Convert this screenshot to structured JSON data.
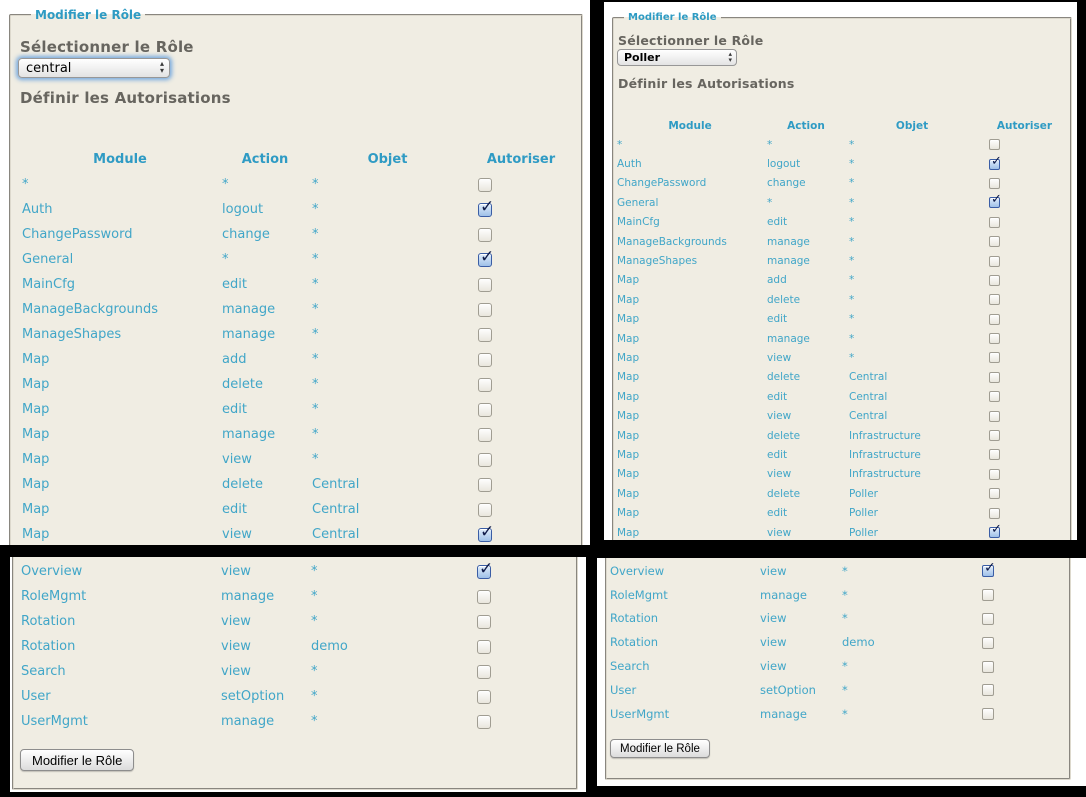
{
  "theme": {
    "accent_blue": "#41a6c8",
    "header_blue": "#2f9bc4",
    "legend_blue": "#2e9bc3",
    "heading_gray": "#67655f",
    "panel_beige": "#f0ede3",
    "frame_black": "#000000"
  },
  "icons": {
    "select_stepper_up": "▴",
    "select_stepper_down": "▾",
    "checkmark": "✓"
  },
  "panels": {
    "top_left": {
      "legend": "Modifier le Rôle",
      "select_role_heading": "Sélectionner le Rôle",
      "selected_role": "central",
      "permissions_heading": "Définir les Autorisations",
      "columns": [
        "Module",
        "Action",
        "Objet",
        "Autoriser"
      ],
      "rows": [
        {
          "module": "*",
          "action": "*",
          "objet": "*",
          "checked": false
        },
        {
          "module": "Auth",
          "action": "logout",
          "objet": "*",
          "checked": true
        },
        {
          "module": "ChangePassword",
          "action": "change",
          "objet": "*",
          "checked": false
        },
        {
          "module": "General",
          "action": "*",
          "objet": "*",
          "checked": true
        },
        {
          "module": "MainCfg",
          "action": "edit",
          "objet": "*",
          "checked": false
        },
        {
          "module": "ManageBackgrounds",
          "action": "manage",
          "objet": "*",
          "checked": false
        },
        {
          "module": "ManageShapes",
          "action": "manage",
          "objet": "*",
          "checked": false
        },
        {
          "module": "Map",
          "action": "add",
          "objet": "*",
          "checked": false
        },
        {
          "module": "Map",
          "action": "delete",
          "objet": "*",
          "checked": false
        },
        {
          "module": "Map",
          "action": "edit",
          "objet": "*",
          "checked": false
        },
        {
          "module": "Map",
          "action": "manage",
          "objet": "*",
          "checked": false
        },
        {
          "module": "Map",
          "action": "view",
          "objet": "*",
          "checked": false
        },
        {
          "module": "Map",
          "action": "delete",
          "objet": "Central",
          "checked": false
        },
        {
          "module": "Map",
          "action": "edit",
          "objet": "Central",
          "checked": false
        },
        {
          "module": "Map",
          "action": "view",
          "objet": "Central",
          "checked": true
        }
      ]
    },
    "top_right": {
      "legend": "Modifier le Rôle",
      "select_role_heading": "Sélectionner le Rôle",
      "selected_role": "Poller",
      "permissions_heading": "Définir les Autorisations",
      "columns": [
        "Module",
        "Action",
        "Objet",
        "Autoriser"
      ],
      "rows": [
        {
          "module": "*",
          "action": "*",
          "objet": "*",
          "checked": false
        },
        {
          "module": "Auth",
          "action": "logout",
          "objet": "*",
          "checked": true
        },
        {
          "module": "ChangePassword",
          "action": "change",
          "objet": "*",
          "checked": false
        },
        {
          "module": "General",
          "action": "*",
          "objet": "*",
          "checked": true
        },
        {
          "module": "MainCfg",
          "action": "edit",
          "objet": "*",
          "checked": false
        },
        {
          "module": "ManageBackgrounds",
          "action": "manage",
          "objet": "*",
          "checked": false
        },
        {
          "module": "ManageShapes",
          "action": "manage",
          "objet": "*",
          "checked": false
        },
        {
          "module": "Map",
          "action": "add",
          "objet": "*",
          "checked": false
        },
        {
          "module": "Map",
          "action": "delete",
          "objet": "*",
          "checked": false
        },
        {
          "module": "Map",
          "action": "edit",
          "objet": "*",
          "checked": false
        },
        {
          "module": "Map",
          "action": "manage",
          "objet": "*",
          "checked": false
        },
        {
          "module": "Map",
          "action": "view",
          "objet": "*",
          "checked": false
        },
        {
          "module": "Map",
          "action": "delete",
          "objet": "Central",
          "checked": false
        },
        {
          "module": "Map",
          "action": "edit",
          "objet": "Central",
          "checked": false
        },
        {
          "module": "Map",
          "action": "view",
          "objet": "Central",
          "checked": false
        },
        {
          "module": "Map",
          "action": "delete",
          "objet": "Infrastructure",
          "checked": false
        },
        {
          "module": "Map",
          "action": "edit",
          "objet": "Infrastructure",
          "checked": false
        },
        {
          "module": "Map",
          "action": "view",
          "objet": "Infrastructure",
          "checked": false
        },
        {
          "module": "Map",
          "action": "delete",
          "objet": "Poller",
          "checked": false
        },
        {
          "module": "Map",
          "action": "edit",
          "objet": "Poller",
          "checked": false
        },
        {
          "module": "Map",
          "action": "view",
          "objet": "Poller",
          "checked": true
        }
      ]
    },
    "bottom_left": {
      "submit_button": "Modifier le Rôle",
      "rows": [
        {
          "module": "Overview",
          "action": "view",
          "objet": "*",
          "checked": true
        },
        {
          "module": "RoleMgmt",
          "action": "manage",
          "objet": "*",
          "checked": false
        },
        {
          "module": "Rotation",
          "action": "view",
          "objet": "*",
          "checked": false
        },
        {
          "module": "Rotation",
          "action": "view",
          "objet": "demo",
          "checked": false
        },
        {
          "module": "Search",
          "action": "view",
          "objet": "*",
          "checked": false
        },
        {
          "module": "User",
          "action": "setOption",
          "objet": "*",
          "checked": false
        },
        {
          "module": "UserMgmt",
          "action": "manage",
          "objet": "*",
          "checked": false
        }
      ]
    },
    "bottom_right": {
      "submit_button": "Modifier le Rôle",
      "rows": [
        {
          "module": "Overview",
          "action": "view",
          "objet": "*",
          "checked": true
        },
        {
          "module": "RoleMgmt",
          "action": "manage",
          "objet": "*",
          "checked": false
        },
        {
          "module": "Rotation",
          "action": "view",
          "objet": "*",
          "checked": false
        },
        {
          "module": "Rotation",
          "action": "view",
          "objet": "demo",
          "checked": false
        },
        {
          "module": "Search",
          "action": "view",
          "objet": "*",
          "checked": false
        },
        {
          "module": "User",
          "action": "setOption",
          "objet": "*",
          "checked": false
        },
        {
          "module": "UserMgmt",
          "action": "manage",
          "objet": "*",
          "checked": false
        }
      ]
    }
  }
}
